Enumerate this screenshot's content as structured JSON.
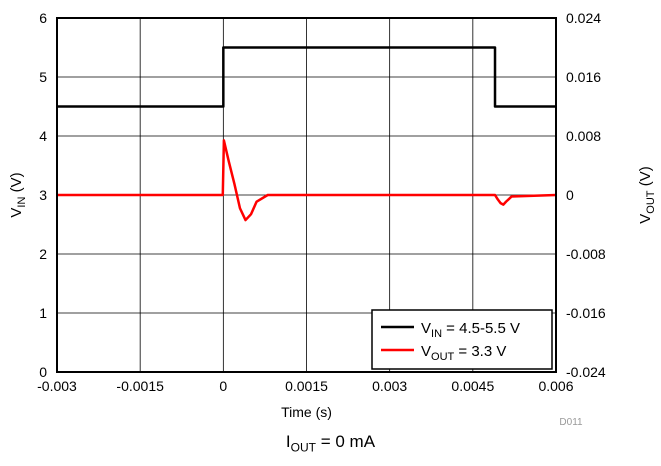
{
  "chart_data": {
    "type": "line",
    "xlabel": "Time (s)",
    "ylabel_left": {
      "main": "V",
      "sub": "IN",
      "tail": " (V)"
    },
    "ylabel_right": {
      "main": "V",
      "sub": "OUT",
      "tail": " (V)"
    },
    "xlim": [
      -0.003,
      0.006
    ],
    "ylim_left": [
      0,
      6
    ],
    "ylim_right": [
      -0.024,
      0.024
    ],
    "x_ticks": [
      "-0.003",
      "-0.0015",
      "0",
      "0.0015",
      "0.003",
      "0.0045",
      "0.006"
    ],
    "y_ticks_left": [
      "0",
      "1",
      "2",
      "3",
      "4",
      "5",
      "6"
    ],
    "y_ticks_right": [
      "-0.024",
      "-0.016",
      "-0.008",
      "0",
      "0.008",
      "0.016",
      "0.024"
    ],
    "grid": true,
    "legend_position": "bottom-right",
    "series": [
      {
        "name": {
          "main": "V",
          "sub": "IN",
          "tail": " = 4.5-5.5 V"
        },
        "axis": "left",
        "color": "#000000",
        "x": [
          -0.003,
          0.0,
          0.0,
          0.0049,
          0.0049,
          0.006
        ],
        "y": [
          4.5,
          4.5,
          5.5,
          5.5,
          4.5,
          4.5
        ]
      },
      {
        "name": {
          "main": "V",
          "sub": "OUT",
          "tail": " = 3.3 V"
        },
        "axis": "right",
        "color": "#ff0000",
        "x": [
          -0.003,
          -1e-05,
          1e-05,
          0.0001,
          0.0002,
          0.0003,
          0.0004,
          0.0005,
          0.0006,
          0.0008,
          0.0012,
          0.002,
          0.0049,
          0.00495,
          0.005,
          0.00505,
          0.0051,
          0.0052,
          0.006
        ],
        "y": [
          0.0,
          0.0,
          0.0074,
          0.0045,
          0.0015,
          -0.0018,
          -0.0034,
          -0.0026,
          -0.0009,
          0.0,
          0.0,
          0.0,
          0.0,
          -0.0006,
          -0.0011,
          -0.0013,
          -0.0009,
          -0.0002,
          0.0
        ]
      }
    ],
    "watermark": "D011"
  },
  "caption": {
    "main": "I",
    "sub": "OUT",
    "tail": " = 0 mA"
  }
}
